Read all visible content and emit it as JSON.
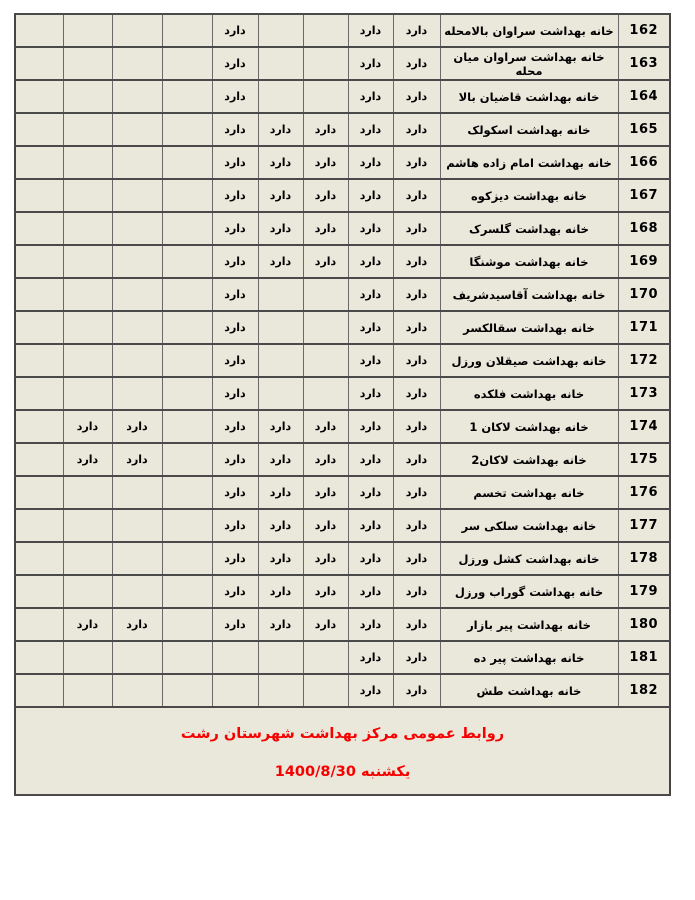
{
  "table": {
    "dard_label": "دارد",
    "rows": [
      {
        "num": "162",
        "name": "خانه بهداشت سراوان بالامحله",
        "cells": [
          "",
          "",
          "",
          "",
          "دارد",
          "",
          "",
          "دارد",
          "دارد"
        ]
      },
      {
        "num": "163",
        "name": "خانه بهداشت سراوان میان محله",
        "cells": [
          "",
          "",
          "",
          "",
          "دارد",
          "",
          "",
          "دارد",
          "دارد"
        ]
      },
      {
        "num": "164",
        "name": "خانه بهداشت قاضیان بالا",
        "cells": [
          "",
          "",
          "",
          "",
          "دارد",
          "",
          "",
          "دارد",
          "دارد"
        ]
      },
      {
        "num": "165",
        "name": "خانه بهداشت اسکولک",
        "cells": [
          "",
          "",
          "",
          "",
          "دارد",
          "دارد",
          "دارد",
          "دارد",
          "دارد"
        ]
      },
      {
        "num": "166",
        "name": "خانه بهداشت امام زاده هاشم",
        "cells": [
          "",
          "",
          "",
          "",
          "دارد",
          "دارد",
          "دارد",
          "دارد",
          "دارد"
        ]
      },
      {
        "num": "167",
        "name": "خانه بهداشت دیزکوه",
        "cells": [
          "",
          "",
          "",
          "",
          "دارد",
          "دارد",
          "دارد",
          "دارد",
          "دارد"
        ]
      },
      {
        "num": "168",
        "name": "خانه بهداشت گلسرک",
        "cells": [
          "",
          "",
          "",
          "",
          "دارد",
          "دارد",
          "دارد",
          "دارد",
          "دارد"
        ]
      },
      {
        "num": "169",
        "name": "خانه بهداشت موشنگا",
        "cells": [
          "",
          "",
          "",
          "",
          "دارد",
          "دارد",
          "دارد",
          "دارد",
          "دارد"
        ]
      },
      {
        "num": "170",
        "name": "خانه بهداشت آقاسیدشریف",
        "cells": [
          "",
          "",
          "",
          "",
          "دارد",
          "",
          "",
          "دارد",
          "دارد"
        ]
      },
      {
        "num": "171",
        "name": "خانه بهداشت سقالکسر",
        "cells": [
          "",
          "",
          "",
          "",
          "دارد",
          "",
          "",
          "دارد",
          "دارد"
        ]
      },
      {
        "num": "172",
        "name": "خانه بهداشت صیقلان ورزل",
        "cells": [
          "",
          "",
          "",
          "",
          "دارد",
          "",
          "",
          "دارد",
          "دارد"
        ]
      },
      {
        "num": "173",
        "name": "خانه بهداشت فلکده",
        "cells": [
          "",
          "",
          "",
          "",
          "دارد",
          "",
          "",
          "دارد",
          "دارد"
        ]
      },
      {
        "num": "174",
        "name": "خانه بهداشت لاکان 1",
        "cells": [
          "",
          "دارد",
          "دارد",
          "",
          "دارد",
          "دارد",
          "دارد",
          "دارد",
          "دارد"
        ]
      },
      {
        "num": "175",
        "name": "خانه بهداشت لاکان2",
        "cells": [
          "",
          "دارد",
          "دارد",
          "",
          "دارد",
          "دارد",
          "دارد",
          "دارد",
          "دارد"
        ]
      },
      {
        "num": "176",
        "name": "خانه بهداشت تخسم",
        "cells": [
          "",
          "",
          "",
          "",
          "دارد",
          "دارد",
          "دارد",
          "دارد",
          "دارد"
        ]
      },
      {
        "num": "177",
        "name": "خانه بهداشت سلکی سر",
        "cells": [
          "",
          "",
          "",
          "",
          "دارد",
          "دارد",
          "دارد",
          "دارد",
          "دارد"
        ]
      },
      {
        "num": "178",
        "name": "خانه بهداشت کشل ورزل",
        "cells": [
          "",
          "",
          "",
          "",
          "دارد",
          "دارد",
          "دارد",
          "دارد",
          "دارد"
        ]
      },
      {
        "num": "179",
        "name": "خانه بهداشت گوراب ورزل",
        "cells": [
          "",
          "",
          "",
          "",
          "دارد",
          "دارد",
          "دارد",
          "دارد",
          "دارد"
        ]
      },
      {
        "num": "180",
        "name": "خانه بهداشت پیر بازار",
        "cells": [
          "",
          "دارد",
          "دارد",
          "",
          "دارد",
          "دارد",
          "دارد",
          "دارد",
          "دارد"
        ]
      },
      {
        "num": "181",
        "name": "خانه بهداشت پیر ده",
        "cells": [
          "",
          "",
          "",
          "",
          "",
          "",
          "",
          "دارد",
          "دارد"
        ]
      },
      {
        "num": "182",
        "name": "خانه بهداشت طش",
        "cells": [
          "",
          "",
          "",
          "",
          "",
          "",
          "",
          "دارد",
          "دارد"
        ]
      }
    ],
    "footer": {
      "line1": "روابط عمومی مرکز بهداشت شهرستان رشت",
      "line2": "یکشنبه 1400/8/30"
    }
  },
  "colors": {
    "cell_bg": "#eae7db",
    "number_col_bg": "#f2f1ee",
    "footer_bg": "#f3f3f1",
    "grid_border": "#4a4a4a",
    "accent_red": "#f60000",
    "text": "#000000"
  }
}
